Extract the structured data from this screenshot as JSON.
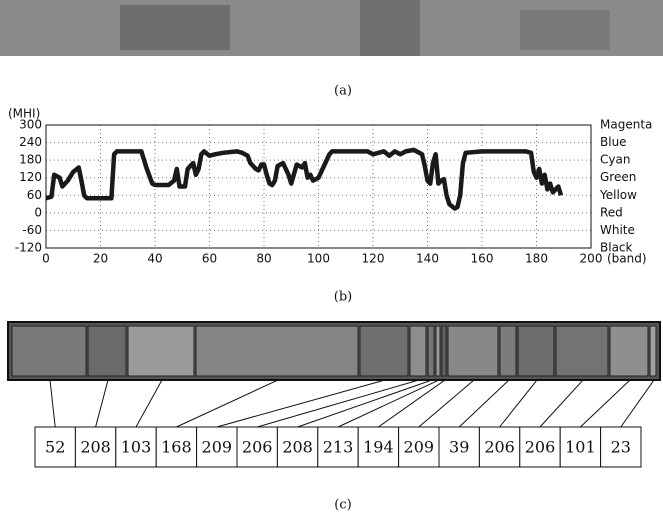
{
  "captions": [
    "(a)",
    "(b)",
    "(c)"
  ],
  "chart_data": {
    "type": "line",
    "ylabel": "(MHI)",
    "xlabel": "(band)",
    "color": "#1a1a1a",
    "grid": true,
    "xlim": [
      0,
      200
    ],
    "xticks": [
      0,
      20,
      40,
      60,
      80,
      100,
      120,
      140,
      160,
      180,
      200
    ],
    "ylim": [
      -120,
      300
    ],
    "yticks": [
      -120,
      -60,
      0,
      60,
      120,
      180,
      240,
      300
    ],
    "ytick_names": [
      "Black",
      "White",
      "Red",
      "Yellow",
      "Green",
      "Cyan",
      "Blue",
      "Magenta"
    ],
    "x": [
      0,
      2,
      3,
      5,
      6,
      8,
      10,
      12,
      13,
      14,
      15,
      20,
      24,
      25,
      26,
      30,
      35,
      37,
      39,
      40,
      45,
      47,
      48,
      49,
      51,
      52,
      54,
      55,
      56,
      57,
      58,
      60,
      62,
      65,
      70,
      72,
      74,
      75,
      76,
      77,
      78,
      79,
      80,
      81,
      82,
      83,
      84,
      85,
      87,
      89,
      90,
      92,
      94,
      95,
      96,
      97,
      98,
      100,
      102,
      104,
      105,
      110,
      118,
      120,
      122,
      124,
      126,
      128,
      130,
      132,
      135,
      136,
      138,
      139,
      140,
      141,
      142,
      143,
      144,
      145,
      146,
      147,
      148,
      150,
      151,
      152,
      153,
      154,
      160,
      170,
      176,
      178,
      179,
      180,
      181,
      182,
      183,
      184,
      185,
      186,
      187,
      188,
      189
    ],
    "values": [
      50,
      55,
      130,
      120,
      90,
      110,
      140,
      155,
      110,
      60,
      50,
      50,
      50,
      200,
      210,
      210,
      210,
      150,
      100,
      95,
      95,
      110,
      150,
      90,
      90,
      150,
      170,
      130,
      150,
      200,
      210,
      195,
      200,
      205,
      210,
      205,
      195,
      170,
      160,
      150,
      145,
      165,
      165,
      130,
      100,
      95,
      110,
      160,
      170,
      130,
      100,
      165,
      155,
      170,
      120,
      130,
      110,
      120,
      160,
      200,
      210,
      210,
      210,
      200,
      205,
      210,
      195,
      210,
      200,
      210,
      215,
      210,
      200,
      160,
      110,
      100,
      170,
      200,
      100,
      110,
      115,
      60,
      30,
      15,
      20,
      60,
      170,
      205,
      210,
      210,
      210,
      205,
      140,
      120,
      150,
      100,
      130,
      80,
      100,
      70,
      80,
      90,
      60
    ]
  },
  "segments": {
    "labels": [
      "52",
      "208",
      "103",
      "168",
      "209",
      "206",
      "208",
      "213",
      "194",
      "209",
      "39",
      "206",
      "206",
      "101",
      "23"
    ]
  }
}
